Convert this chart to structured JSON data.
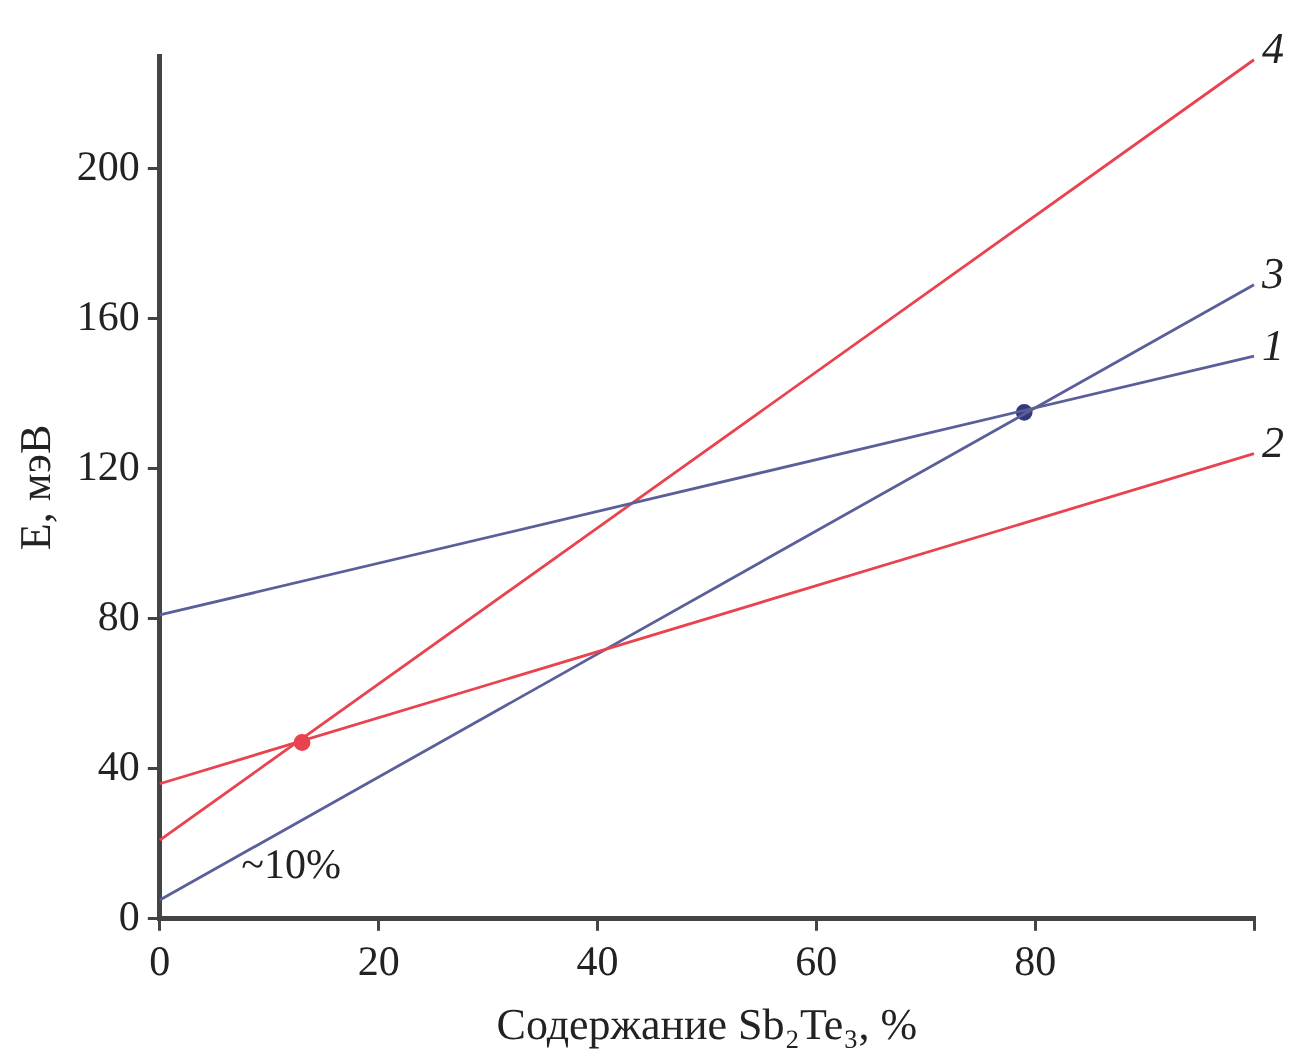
{
  "chart_data": {
    "type": "line",
    "xlabel": "Содержание Sb₂Te₃, %",
    "ylabel": "E, мэВ",
    "xlim": [
      0,
      100
    ],
    "xticks": [
      0,
      20,
      40,
      60,
      80,
      {
        "value": 100,
        "label": null
      }
    ],
    "ylim": [
      0,
      230
    ],
    "yticks": [
      0,
      40,
      80,
      120,
      160,
      200
    ],
    "grid": false,
    "legend": false,
    "annotations": [
      "~10%"
    ],
    "series": [
      {
        "name": "1",
        "marker": "none",
        "color": "#5a5f9a",
        "x": [
          0,
          100
        ],
        "values": [
          81,
          150
        ]
      },
      {
        "name": "2",
        "marker": "none",
        "color": "#e8434f",
        "x": [
          0,
          100
        ],
        "values": [
          36,
          124
        ]
      },
      {
        "name": "3",
        "marker": "none",
        "color": "#5a5f9a",
        "x": [
          0,
          100
        ],
        "values": [
          5,
          169
        ]
      },
      {
        "name": "4",
        "marker": "none",
        "color": "#e8434f",
        "x": [
          0,
          100
        ],
        "values": [
          21,
          229
        ]
      },
      {
        "type": "scatter",
        "marker": "circle",
        "color": "#e8434f",
        "x": [
          13
        ],
        "values": [
          47
        ]
      },
      {
        "type": "scatter",
        "marker": "circle",
        "color": "#33397a",
        "x": [
          79
        ],
        "values": [
          135
        ]
      }
    ]
  }
}
